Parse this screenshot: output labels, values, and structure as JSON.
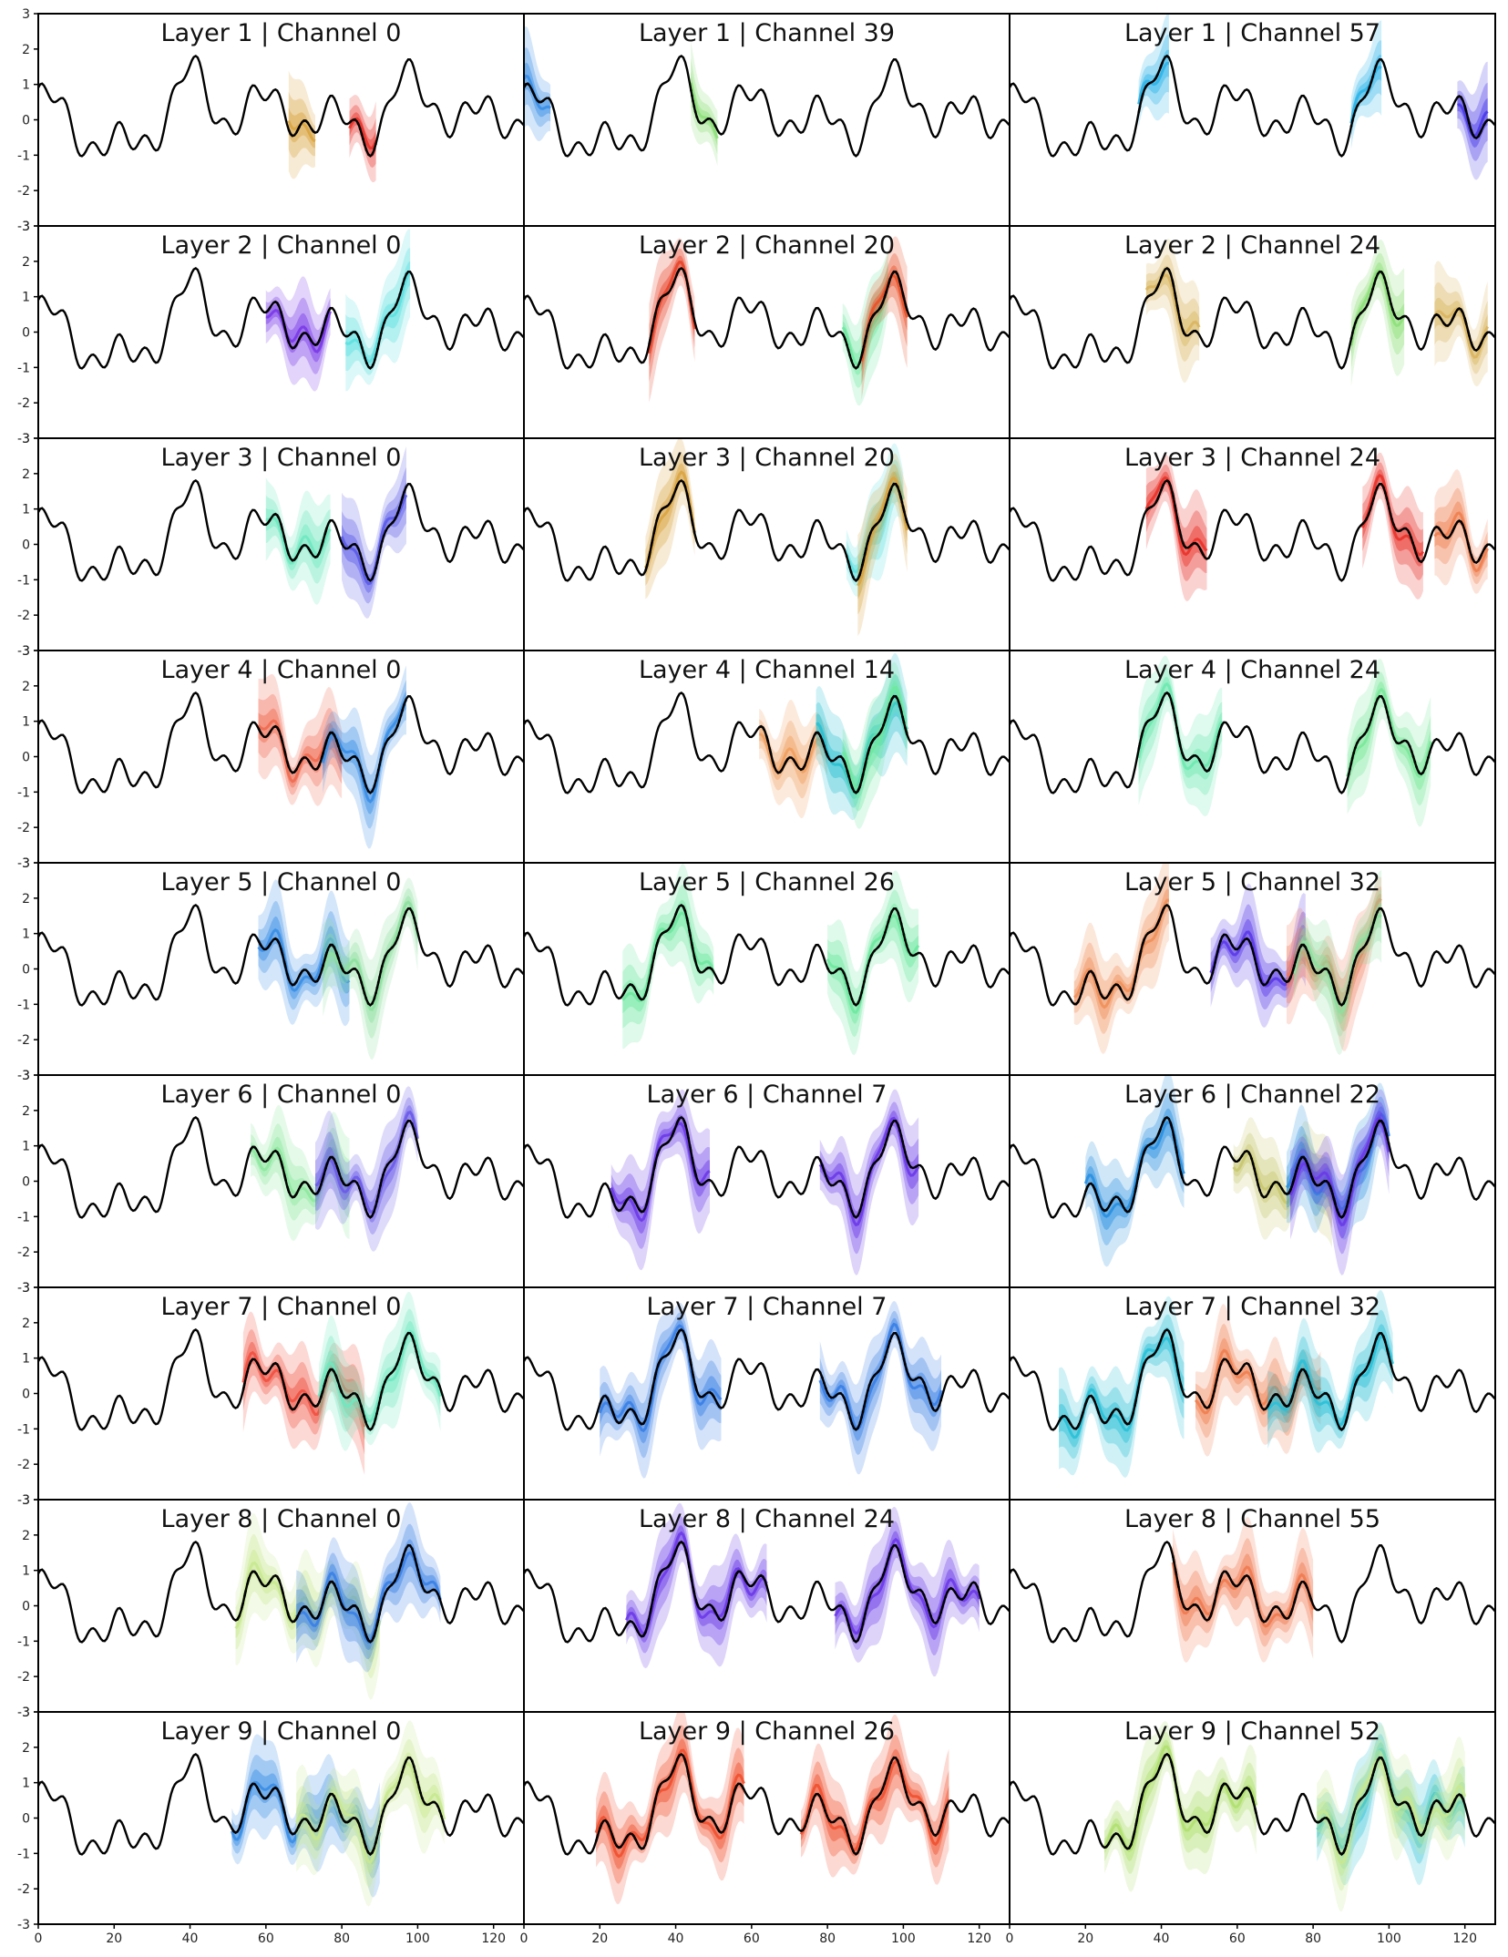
{
  "chart_data": {
    "type": "line",
    "grid": "3x9 panels",
    "x_ticks": [
      0,
      20,
      40,
      60,
      80,
      100,
      120
    ],
    "y_ticks": [
      3,
      2,
      1,
      0,
      -1,
      -2,
      -3
    ],
    "xlim": [
      0,
      128
    ],
    "ylim": [
      -3,
      3
    ],
    "series_description": "black solid line: input signal; dashed/dotted: reconstructions; shaded bands: uncertainty",
    "panels": [
      {
        "title": "Layer 1 | Channel 0",
        "bands": [
          {
            "color": "#d9a441",
            "x0": 66,
            "x1": 73
          },
          {
            "color": "#e8322a",
            "x0": 82,
            "x1": 89
          }
        ]
      },
      {
        "title": "Layer 1 | Channel 39",
        "bands": [
          {
            "color": "#3a8ee6",
            "x0": 0,
            "x1": 7
          },
          {
            "color": "#8ee07a",
            "x0": 44,
            "x1": 51
          }
        ]
      },
      {
        "title": "Layer 1 | Channel 57",
        "bands": [
          {
            "color": "#2fb4e8",
            "x0": 34,
            "x1": 42
          },
          {
            "color": "#2fb4e8",
            "x0": 90,
            "x1": 98
          },
          {
            "color": "#4a3ae8",
            "x0": 118,
            "x1": 126
          }
        ]
      },
      {
        "title": "Layer 2 | Channel 0",
        "bands": [
          {
            "color": "#7a3ae8",
            "x0": 60,
            "x1": 77
          },
          {
            "color": "#5ee0e0",
            "x0": 81,
            "x1": 98
          }
        ]
      },
      {
        "title": "Layer 2 | Channel 20",
        "bands": [
          {
            "color": "#e8442a",
            "x0": 33,
            "x1": 45
          },
          {
            "color": "#6ee8a0",
            "x0": 84,
            "x1": 96
          },
          {
            "color": "#e8522a",
            "x0": 89,
            "x1": 101
          }
        ]
      },
      {
        "title": "Layer 2 | Channel 24",
        "bands": [
          {
            "color": "#d9b560",
            "x0": 36,
            "x1": 50
          },
          {
            "color": "#8ee07a",
            "x0": 90,
            "x1": 104
          },
          {
            "color": "#d9b560",
            "x0": 112,
            "x1": 126
          }
        ]
      },
      {
        "title": "Layer 3 | Channel 0",
        "bands": [
          {
            "color": "#6ee8c0",
            "x0": 60,
            "x1": 77
          },
          {
            "color": "#5a5ae8",
            "x0": 80,
            "x1": 97
          }
        ]
      },
      {
        "title": "Layer 3 | Channel 20",
        "bands": [
          {
            "color": "#d9a441",
            "x0": 32,
            "x1": 45
          },
          {
            "color": "#5ee0e0",
            "x0": 85,
            "x1": 100
          },
          {
            "color": "#d9a441",
            "x0": 88,
            "x1": 101
          }
        ]
      },
      {
        "title": "Layer 3 | Channel 24",
        "bands": [
          {
            "color": "#e8322a",
            "x0": 36,
            "x1": 52
          },
          {
            "color": "#e8322a",
            "x0": 93,
            "x1": 109
          },
          {
            "color": "#f08050",
            "x0": 112,
            "x1": 126
          }
        ]
      },
      {
        "title": "Layer 4 | Channel 0",
        "bands": [
          {
            "color": "#f06a50",
            "x0": 58,
            "x1": 80
          },
          {
            "color": "#3a8ee6",
            "x0": 75,
            "x1": 97
          }
        ]
      },
      {
        "title": "Layer 4 | Channel 14",
        "bands": [
          {
            "color": "#f0a060",
            "x0": 62,
            "x1": 80
          },
          {
            "color": "#2ac0d0",
            "x0": 77,
            "x1": 101
          },
          {
            "color": "#6ee8a0",
            "x0": 84,
            "x1": 101
          }
        ]
      },
      {
        "title": "Layer 4 | Channel 24",
        "bands": [
          {
            "color": "#6ee8b0",
            "x0": 34,
            "x1": 56
          },
          {
            "color": "#7ae89a",
            "x0": 89,
            "x1": 111
          }
        ]
      },
      {
        "title": "Layer 5 | Channel 0",
        "bands": [
          {
            "color": "#3a8ee6",
            "x0": 58,
            "x1": 82
          },
          {
            "color": "#8ee0a0",
            "x0": 75,
            "x1": 100
          }
        ]
      },
      {
        "title": "Layer 5 | Channel 26",
        "bands": [
          {
            "color": "#6ee8a0",
            "x0": 26,
            "x1": 50
          },
          {
            "color": "#6ee8a0",
            "x0": 80,
            "x1": 104
          }
        ]
      },
      {
        "title": "Layer 5 | Channel 32",
        "bands": [
          {
            "color": "#f0905a",
            "x0": 17,
            "x1": 42
          },
          {
            "color": "#5a3ae8",
            "x0": 53,
            "x1": 78
          },
          {
            "color": "#f07a5a",
            "x0": 73,
            "x1": 98
          },
          {
            "color": "#8ee0a0",
            "x0": 75,
            "x1": 98
          }
        ]
      },
      {
        "title": "Layer 6 | Channel 0",
        "bands": [
          {
            "color": "#8ee8a0",
            "x0": 56,
            "x1": 82
          },
          {
            "color": "#6a5ae8",
            "x0": 73,
            "x1": 100
          }
        ]
      },
      {
        "title": "Layer 6 | Channel 7",
        "bands": [
          {
            "color": "#6a3ae8",
            "x0": 23,
            "x1": 49
          },
          {
            "color": "#6a3ae8",
            "x0": 78,
            "x1": 104
          }
        ]
      },
      {
        "title": "Layer 6 | Channel 22",
        "bands": [
          {
            "color": "#2a90e0",
            "x0": 20,
            "x1": 46
          },
          {
            "color": "#c8c870",
            "x0": 59,
            "x1": 85
          },
          {
            "color": "#2a90e0",
            "x0": 73,
            "x1": 100
          },
          {
            "color": "#6a3ae8",
            "x0": 74,
            "x1": 100
          }
        ]
      },
      {
        "title": "Layer 7 | Channel 0",
        "bands": [
          {
            "color": "#f05040",
            "x0": 54,
            "x1": 86
          },
          {
            "color": "#6ee8c0",
            "x0": 74,
            "x1": 106
          }
        ]
      },
      {
        "title": "Layer 7 | Channel 7",
        "bands": [
          {
            "color": "#3a80e6",
            "x0": 20,
            "x1": 52
          },
          {
            "color": "#3a80e6",
            "x0": 78,
            "x1": 110
          }
        ]
      },
      {
        "title": "Layer 7 | Channel 32",
        "bands": [
          {
            "color": "#2ac0d8",
            "x0": 13,
            "x1": 46
          },
          {
            "color": "#f08050",
            "x0": 49,
            "x1": 82
          },
          {
            "color": "#2ac0d8",
            "x0": 68,
            "x1": 101
          }
        ]
      },
      {
        "title": "Layer 8 | Channel 0",
        "bands": [
          {
            "color": "#c8e890",
            "x0": 52,
            "x1": 90
          },
          {
            "color": "#3a80e6",
            "x0": 68,
            "x1": 106
          }
        ]
      },
      {
        "title": "Layer 8 | Channel 24",
        "bands": [
          {
            "color": "#6a3ae8",
            "x0": 27,
            "x1": 64
          },
          {
            "color": "#6a3ae8",
            "x0": 82,
            "x1": 120
          }
        ]
      },
      {
        "title": "Layer 8 | Channel 55",
        "bands": [
          {
            "color": "#f07a50",
            "x0": 43,
            "x1": 80
          }
        ]
      },
      {
        "title": "Layer 9 | Channel 0",
        "bands": [
          {
            "color": "#3a8ee6",
            "x0": 51,
            "x1": 90
          },
          {
            "color": "#c8e890",
            "x0": 68,
            "x1": 107
          }
        ]
      },
      {
        "title": "Layer 9 | Channel 26",
        "bands": [
          {
            "color": "#f05030",
            "x0": 19,
            "x1": 58
          },
          {
            "color": "#f05030",
            "x0": 73,
            "x1": 112
          }
        ]
      },
      {
        "title": "Layer 9 | Channel 52",
        "bands": [
          {
            "color": "#b0e070",
            "x0": 25,
            "x1": 65
          },
          {
            "color": "#2ac0d8",
            "x0": 81,
            "x1": 120
          },
          {
            "color": "#c8e890",
            "x0": 81,
            "x1": 120
          }
        ]
      }
    ]
  }
}
